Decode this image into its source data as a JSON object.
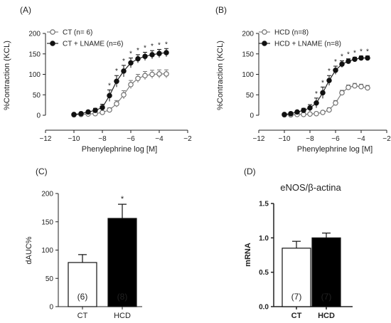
{
  "panel_labels": [
    "(A)",
    "(B)",
    "(C)",
    "(D)"
  ],
  "chart_data": [
    {
      "type": "line",
      "panel": "(A)",
      "xlabel": "Phenylephrine log [M]",
      "ylabel": "%Contraction (KCL)",
      "xlim": [
        -12,
        -2
      ],
      "ylim": [
        0,
        200
      ],
      "xticks": [
        "−12",
        "−10",
        "−8",
        "−6",
        "−4",
        "−2"
      ],
      "yticks": [
        "0",
        "50",
        "100",
        "150",
        "200"
      ],
      "legend_position": "top-left",
      "x": [
        -10,
        -9.5,
        -9,
        -8.5,
        -8,
        -7.5,
        -7,
        -6.5,
        -6,
        -5.5,
        -5,
        -4.5,
        -4,
        -3.5
      ],
      "series": [
        {
          "name": "CT (n= 6)",
          "marker": "open-circle",
          "values": [
            1,
            2,
            3,
            4,
            7,
            13,
            28,
            50,
            75,
            90,
            97,
            100,
            101,
            101
          ],
          "errors": [
            1,
            1,
            1,
            2,
            3,
            5,
            8,
            10,
            10,
            10,
            10,
            10,
            10,
            10
          ]
        },
        {
          "name": "CT + LNAME (n=6)",
          "marker": "filled-circle",
          "values": [
            2,
            4,
            8,
            12,
            19,
            48,
            83,
            108,
            128,
            138,
            144,
            148,
            151,
            153
          ],
          "errors": [
            1,
            2,
            3,
            5,
            8,
            14,
            14,
            14,
            12,
            10,
            10,
            10,
            10,
            10
          ]
        }
      ],
      "significance": {
        "label": "*",
        "x": [
          -7.5,
          -7,
          -6.5,
          -6,
          -5.5,
          -5,
          -4.5,
          -4,
          -3.5
        ]
      }
    },
    {
      "type": "line",
      "panel": "(B)",
      "xlabel": "Phenylephrine log [M]",
      "ylabel": "%Contraction (KCL)",
      "xlim": [
        -12,
        -2
      ],
      "ylim": [
        0,
        200
      ],
      "xticks": [
        "−12",
        "−10",
        "−8",
        "−6",
        "−4",
        "−2"
      ],
      "yticks": [
        "0",
        "50",
        "100",
        "150",
        "200"
      ],
      "legend_position": "top-left",
      "x": [
        -10,
        -9.5,
        -9,
        -8.5,
        -8,
        -7.5,
        -7,
        -6.5,
        -6,
        -5.5,
        -5,
        -4.5,
        -4,
        -3.5
      ],
      "series": [
        {
          "name": "HCD  (n=8)",
          "marker": "open-circle",
          "values": [
            1,
            1,
            2,
            2,
            3,
            4,
            7,
            13,
            30,
            55,
            68,
            72,
            70,
            67
          ],
          "errors": [
            1,
            1,
            1,
            1,
            1,
            2,
            3,
            5,
            6,
            6,
            6,
            6,
            6,
            6
          ]
        },
        {
          "name": "HCD + LNAME (n=8)",
          "marker": "filled-circle",
          "values": [
            2,
            4,
            8,
            12,
            18,
            30,
            55,
            85,
            110,
            125,
            132,
            137,
            140,
            140
          ],
          "errors": [
            1,
            2,
            3,
            5,
            8,
            12,
            14,
            12,
            10,
            8,
            6,
            5,
            5,
            5
          ]
        }
      ],
      "significance": {
        "label": "*",
        "x": [
          -7.5,
          -7,
          -6.5,
          -6,
          -5.5,
          -5,
          -4.5,
          -4,
          -3.5
        ]
      }
    },
    {
      "type": "bar",
      "panel": "(C)",
      "ylabel": "dAUC%",
      "ylim": [
        0,
        200
      ],
      "yticks": [
        "0",
        "50",
        "100",
        "150",
        "200"
      ],
      "categories": [
        "CT",
        "HCD"
      ],
      "values": [
        78,
        156
      ],
      "errors": [
        14,
        25
      ],
      "n_labels": [
        "(6)",
        "(8)"
      ],
      "fills": [
        "#ffffff",
        "#000000"
      ],
      "significance": [
        "",
        "*"
      ]
    },
    {
      "type": "bar",
      "panel": "(D)",
      "title": "eNOS/β-actina",
      "ylabel": "mRNA",
      "ylim": [
        0,
        1.5
      ],
      "yticks": [
        "0.0",
        "0.5",
        "1.0",
        "1.5"
      ],
      "categories": [
        "CT",
        "HCD"
      ],
      "values": [
        0.85,
        1.0
      ],
      "errors": [
        0.1,
        0.07
      ],
      "n_labels": [
        "(7)",
        "(7)"
      ],
      "fills": [
        "#ffffff",
        "#000000"
      ]
    }
  ]
}
